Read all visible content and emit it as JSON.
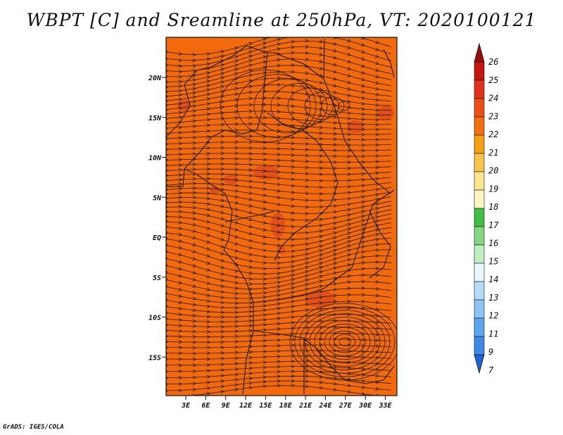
{
  "title": "WBPT [C] and Sreamline at 250hPa, VT: 2020100121",
  "credit": "GrADS: IGES/COLA",
  "map": {
    "lat_labels": [
      "20N",
      "15N",
      "10N",
      "5N",
      "EQ",
      "5S",
      "10S",
      "15S"
    ],
    "lon_labels": [
      "3E",
      "6E",
      "9E",
      "12E",
      "15E",
      "18E",
      "21E",
      "24E",
      "27E",
      "30E",
      "33E"
    ],
    "fill_color": "#f26a0c",
    "hot_spot_color": "#e04d1a"
  },
  "colorbar": {
    "labels": [
      "26",
      "25",
      "24",
      "23",
      "22",
      "21",
      "20",
      "19",
      "18",
      "17",
      "16",
      "15",
      "14",
      "13",
      "12",
      "11",
      "9",
      "7"
    ],
    "colors": [
      "#9a0c0c",
      "#c4160f",
      "#e0331a",
      "#ee4e14",
      "#f2700f",
      "#f5a00f",
      "#f7c34a",
      "#fde58e",
      "#fdf6c3",
      "#3fbf3f",
      "#82d882",
      "#bfefbf",
      "#e8f8ff",
      "#b4dcf8",
      "#8cc4f4",
      "#5aa6ef",
      "#3c88e6",
      "#1f63d6"
    ]
  }
}
